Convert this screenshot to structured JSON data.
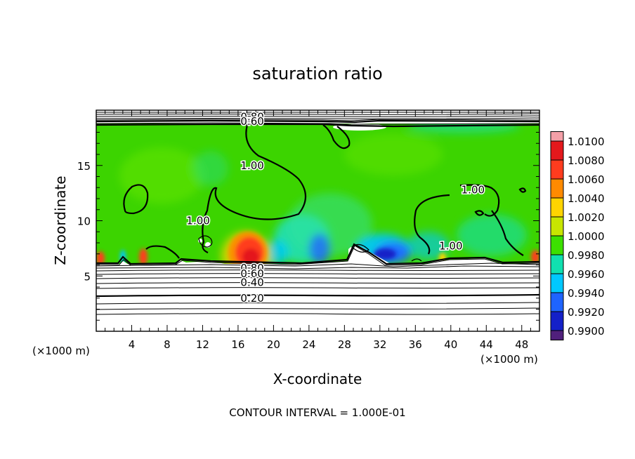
{
  "chart_data": {
    "type": "heatmap",
    "title": "saturation ratio",
    "xlabel": "X-coordinate",
    "ylabel": "Z-coordinate",
    "x_unit_left": "(×1000 m)",
    "x_unit_right": "(×1000 m)",
    "xlim": [
      0,
      50
    ],
    "ylim": [
      0,
      20
    ],
    "x_ticks": [
      4,
      8,
      12,
      16,
      20,
      24,
      28,
      32,
      36,
      40,
      44,
      48
    ],
    "y_ticks": [
      5,
      10,
      15
    ],
    "colorbar": {
      "levels": [
        "1.0100",
        "1.0080",
        "1.0060",
        "1.0040",
        "1.0020",
        "1.0000",
        "0.9980",
        "0.9960",
        "0.9940",
        "0.9920",
        "0.9900"
      ],
      "colors": [
        "#f4a0a8",
        "#e4181c",
        "#ff3c1e",
        "#ff8a00",
        "#ffd400",
        "#c8e600",
        "#3ce000",
        "#10e0b0",
        "#00c8ff",
        "#1e64ff",
        "#1420c8",
        "#50207c"
      ]
    },
    "contour_labels": [
      {
        "text": "1.00",
        "x": 17.6,
        "z": 15.0
      },
      {
        "text": "1.00",
        "x": 11.5,
        "z": 10.0
      },
      {
        "text": "1.00",
        "x": 42.5,
        "z": 12.8
      },
      {
        "text": "1.00",
        "x": 40.0,
        "z": 7.7
      },
      {
        "text": "0.80",
        "x": 17.6,
        "z": 5.7
      },
      {
        "text": "0.60",
        "x": 17.6,
        "z": 5.2
      },
      {
        "text": "0.40",
        "x": 17.6,
        "z": 4.4
      },
      {
        "text": "0.20",
        "x": 17.6,
        "z": 3.0
      },
      {
        "text": "0.80",
        "x": 17.6,
        "z": 19.4
      },
      {
        "text": "0.60",
        "x": 17.6,
        "z": 19.0
      }
    ],
    "footer": "CONTOUR INTERVAL = 1.000E-01"
  }
}
